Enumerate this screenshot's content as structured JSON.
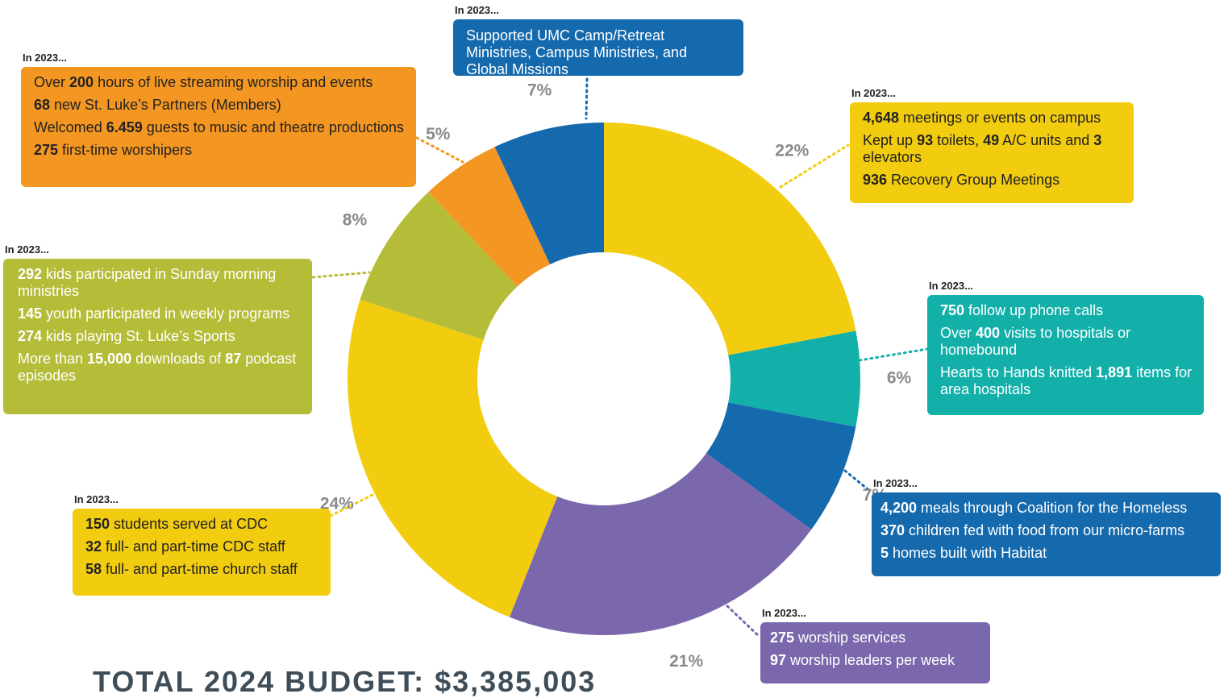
{
  "chart_data": {
    "type": "donut",
    "slices": [
      {
        "label": "22%",
        "value": 22,
        "color": "#f2cc0f"
      },
      {
        "label": "6%",
        "value": 6,
        "color": "#13b0aa"
      },
      {
        "label": "7%",
        "value": 7,
        "color": "#1569ad"
      },
      {
        "label": "21%",
        "value": 21,
        "color": "#7b68ac"
      },
      {
        "label": "24%",
        "value": 24,
        "color": "#f2cc0f"
      },
      {
        "label": "8%",
        "value": 8,
        "color": "#b5bd38"
      },
      {
        "label": "5%",
        "value": 5,
        "color": "#f49622"
      },
      {
        "label": "7%",
        "value": 7,
        "color": "#1569ad"
      }
    ],
    "start": "top",
    "direction": "clockwise",
    "title": "TOTAL 2024 BUDGET: $3,385,003"
  },
  "callouts": {
    "camp": {
      "heading": "In 2023...",
      "lines": [
        [
          {
            "t": "Supported UMC Camp/Retreat Ministries, Campus Ministries, and Global Missions"
          }
        ]
      ]
    },
    "stream": {
      "heading": "In 2023...",
      "lines": [
        [
          {
            "t": "Over "
          },
          {
            "b": "200"
          },
          {
            "t": " hours of live streaming worship and events"
          }
        ],
        [
          {
            "b": "68"
          },
          {
            "t": " new St. Luke’s Partners (Members)"
          }
        ],
        [
          {
            "t": "Welcomed "
          },
          {
            "b": "6.459"
          },
          {
            "t": " guests to music and theatre productions"
          }
        ],
        [
          {
            "b": "275"
          },
          {
            "t": " first-time worshipers"
          }
        ]
      ]
    },
    "meet": {
      "heading": "In 2023...",
      "lines": [
        [
          {
            "b": "4,648"
          },
          {
            "t": " meetings or events on campus"
          }
        ],
        [
          {
            "t": "Kept up "
          },
          {
            "b": "93"
          },
          {
            "t": " toilets, "
          },
          {
            "b": "49"
          },
          {
            "t": " A/C units and "
          },
          {
            "b": "3"
          },
          {
            "t": " elevators"
          }
        ],
        [
          {
            "b": "936"
          },
          {
            "t": " Recovery Group Meetings"
          }
        ]
      ]
    },
    "kids": {
      "heading": "In 2023...",
      "lines": [
        [
          {
            "b": "292"
          },
          {
            "t": " kids participated in Sunday morning ministries"
          }
        ],
        [
          {
            "b": "145"
          },
          {
            "t": " youth participated in weekly programs"
          }
        ],
        [
          {
            "b": "274"
          },
          {
            "t": " kids playing St. Luke’s Sports"
          }
        ],
        [
          {
            "t": "More than "
          },
          {
            "b": "15,000"
          },
          {
            "t": " downloads of "
          },
          {
            "b": "87"
          },
          {
            "t": " podcast episodes"
          }
        ]
      ]
    },
    "calls": {
      "heading": "In 2023...",
      "lines": [
        [
          {
            "b": "750"
          },
          {
            "t": " follow up phone calls"
          }
        ],
        [
          {
            "t": "Over "
          },
          {
            "b": "400"
          },
          {
            "t": " visits to hospitals or homebound"
          }
        ],
        [
          {
            "t": "Hearts to Hands knitted "
          },
          {
            "b": "1,891"
          },
          {
            "t": " items for area hospitals"
          }
        ]
      ]
    },
    "meals": {
      "heading": "In 2023...",
      "lines": [
        [
          {
            "b": "4,200"
          },
          {
            "t": " meals through Coalition for the Homeless"
          }
        ],
        [
          {
            "b": "370"
          },
          {
            "t": " children fed with food from our micro-farms"
          }
        ],
        [
          {
            "b": "5"
          },
          {
            "t": " homes built with Habitat"
          }
        ]
      ]
    },
    "cdc": {
      "heading": "In 2023...",
      "lines": [
        [
          {
            "b": "150"
          },
          {
            "t": " students served at CDC"
          }
        ],
        [
          {
            "b": "32"
          },
          {
            "t": " full- and part-time CDC staff"
          }
        ],
        [
          {
            "b": "58"
          },
          {
            "t": " full- and part-time church staff"
          }
        ]
      ]
    },
    "worship": {
      "heading": "In 2023...",
      "lines": [
        [
          {
            "b": "275"
          },
          {
            "t": " worship services"
          }
        ],
        [
          {
            "b": "97"
          },
          {
            "t": " worship leaders per week"
          }
        ]
      ]
    }
  }
}
